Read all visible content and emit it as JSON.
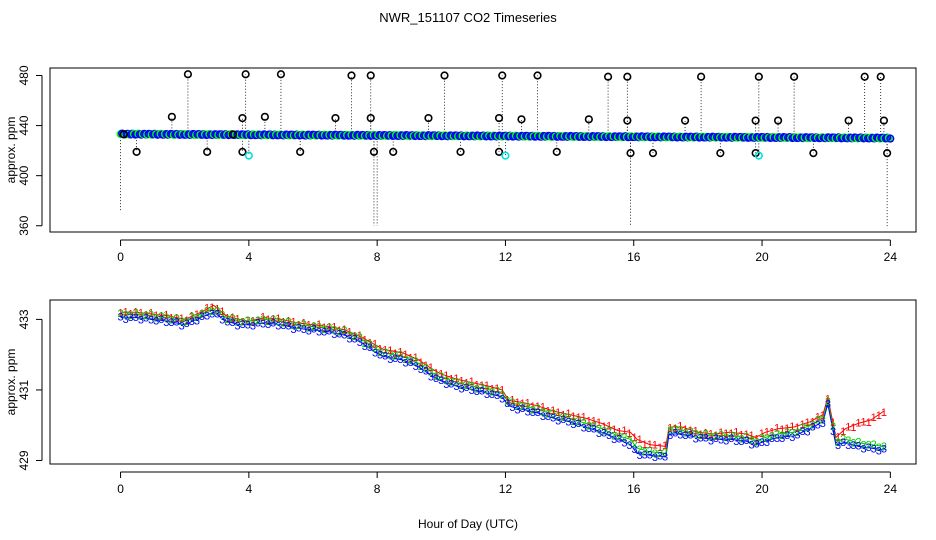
{
  "title": "NWR_151107  CO2 Timeseries",
  "xlabel_shared": "Hour of Day (UTC)",
  "colors": {
    "outlier": "#000000",
    "fill_1": "#0000ff",
    "fill_2": "#00ff00",
    "flag_cyan": "#00e0e0",
    "trace_red": "#ff0000",
    "trace_green": "#00cc00",
    "trace_blue": "#0000ff",
    "axis": "#000000"
  },
  "chart_data": [
    {
      "type": "scatter",
      "panel": "top",
      "ylabel": "approx. ppm",
      "xlim": [
        -2.2,
        24.8
      ],
      "ylim": [
        355,
        486
      ],
      "xticks": [
        0,
        4,
        8,
        12,
        16,
        20,
        24
      ],
      "yticks": [
        360,
        400,
        440,
        480
      ],
      "baseline": {
        "start": [
          0,
          433.2
        ],
        "end": [
          24,
          430.0
        ]
      },
      "outliers_high": [
        [
          0.1,
          433
        ],
        [
          1.6,
          447
        ],
        [
          2.1,
          481
        ],
        [
          3.5,
          433
        ],
        [
          3.8,
          446
        ],
        [
          3.9,
          481
        ],
        [
          4.5,
          447
        ],
        [
          5.0,
          481
        ],
        [
          6.7,
          446
        ],
        [
          7.2,
          480
        ],
        [
          7.8,
          480
        ],
        [
          7.8,
          446
        ],
        [
          9.6,
          446
        ],
        [
          10.1,
          480
        ],
        [
          11.8,
          446
        ],
        [
          11.9,
          480
        ],
        [
          12.5,
          445
        ],
        [
          13.0,
          480
        ],
        [
          14.6,
          445
        ],
        [
          15.2,
          479
        ],
        [
          15.8,
          479
        ],
        [
          15.8,
          444
        ],
        [
          17.6,
          444
        ],
        [
          18.1,
          479
        ],
        [
          19.8,
          444
        ],
        [
          19.9,
          479
        ],
        [
          20.5,
          444
        ],
        [
          21.0,
          479
        ],
        [
          22.7,
          444
        ],
        [
          23.2,
          479
        ],
        [
          23.7,
          479
        ],
        [
          23.8,
          444
        ]
      ],
      "outliers_low": [
        [
          0.5,
          419
        ],
        [
          2.7,
          419
        ],
        [
          3.8,
          419
        ],
        [
          5.6,
          419
        ],
        [
          7.9,
          419
        ],
        [
          8.5,
          419
        ],
        [
          10.6,
          419
        ],
        [
          11.8,
          419
        ],
        [
          13.6,
          419
        ],
        [
          15.9,
          418
        ],
        [
          16.6,
          418
        ],
        [
          18.7,
          418
        ],
        [
          19.8,
          418
        ],
        [
          21.6,
          418
        ],
        [
          23.9,
          418
        ]
      ],
      "cyan_flags": [
        [
          4.0,
          416
        ],
        [
          12.0,
          416
        ],
        [
          19.9,
          416
        ]
      ],
      "spikes_down": [
        [
          0.0,
          372
        ],
        [
          7.9,
          360
        ],
        [
          8.0,
          360
        ],
        [
          15.9,
          360
        ],
        [
          23.9,
          358
        ]
      ]
    },
    {
      "type": "line",
      "panel": "bottom",
      "ylabel": "approx. ppm",
      "xlim": [
        -2.2,
        24.8
      ],
      "ylim": [
        428.9,
        433.55
      ],
      "xticks": [
        0,
        4,
        8,
        12,
        16,
        20,
        24
      ],
      "yticks": [
        429,
        431,
        433
      ],
      "series": [
        {
          "name": "1",
          "marker": "1",
          "x": [
            0,
            0.5,
            1,
            1.5,
            2,
            2.5,
            2.9,
            3.3,
            3.7,
            4,
            4.5,
            5,
            5.5,
            6,
            6.5,
            7,
            7.5,
            7.9,
            8.2,
            8.8,
            9.3,
            9.7,
            10,
            10.5,
            11,
            11.5,
            11.9,
            12.1,
            12.5,
            13,
            13.5,
            14,
            14.5,
            15,
            15.5,
            15.9,
            16.1,
            16.5,
            17,
            17.1,
            17.5,
            18,
            18.5,
            19,
            19.5,
            19.8,
            20.1,
            20.5,
            21,
            21.5,
            21.9,
            22.05,
            22.3,
            22.6,
            23,
            23.4,
            23.8
          ],
          "y": [
            433.2,
            433.2,
            433.15,
            433.1,
            433,
            433.2,
            433.4,
            433.1,
            433,
            432.95,
            433.05,
            433,
            432.9,
            432.85,
            432.8,
            432.7,
            432.5,
            432.3,
            432.15,
            432.05,
            431.85,
            431.6,
            431.45,
            431.3,
            431.2,
            431.1,
            431.0,
            430.7,
            430.65,
            430.55,
            430.4,
            430.3,
            430.2,
            430.05,
            429.85,
            429.8,
            429.6,
            429.45,
            429.4,
            429.95,
            429.95,
            429.8,
            429.75,
            429.8,
            429.75,
            429.65,
            429.8,
            429.9,
            429.95,
            430.1,
            430.3,
            430.8,
            429.65,
            429.9,
            430.05,
            430.15,
            430.4
          ]
        },
        {
          "name": "2",
          "marker": "2",
          "x": [
            0,
            0.5,
            1,
            1.5,
            2,
            2.5,
            2.9,
            3.3,
            3.7,
            4,
            4.5,
            5,
            5.5,
            6,
            6.5,
            7,
            7.5,
            7.9,
            8.2,
            8.8,
            9.3,
            9.7,
            10,
            10.5,
            11,
            11.5,
            11.9,
            12.1,
            12.5,
            13,
            13.5,
            14,
            14.5,
            15,
            15.5,
            15.9,
            16.1,
            16.5,
            17,
            17.1,
            17.5,
            18,
            18.5,
            19,
            19.5,
            19.8,
            20.1,
            20.5,
            21,
            21.5,
            21.9,
            22.05,
            22.3,
            22.6,
            23,
            23.4,
            23.8
          ],
          "y": [
            433.15,
            433.15,
            433.1,
            433.05,
            432.95,
            433.15,
            433.3,
            433.05,
            432.95,
            432.95,
            433.0,
            432.95,
            432.85,
            432.8,
            432.75,
            432.65,
            432.45,
            432.2,
            432.05,
            431.95,
            431.75,
            431.5,
            431.35,
            431.2,
            431.1,
            431.0,
            430.9,
            430.65,
            430.55,
            430.45,
            430.3,
            430.2,
            430.05,
            429.9,
            429.7,
            429.6,
            429.35,
            429.25,
            429.2,
            429.9,
            429.85,
            429.75,
            429.7,
            429.7,
            429.65,
            429.55,
            429.65,
            429.75,
            429.8,
            430.0,
            430.2,
            430.7,
            429.55,
            429.6,
            429.5,
            429.45,
            429.4
          ]
        },
        {
          "name": "3",
          "marker": "3",
          "x": [
            0,
            0.5,
            1,
            1.5,
            2,
            2.5,
            2.9,
            3.3,
            3.7,
            4,
            4.5,
            5,
            5.5,
            6,
            6.5,
            7,
            7.5,
            7.9,
            8.2,
            8.8,
            9.3,
            9.7,
            10,
            10.5,
            11,
            11.5,
            11.9,
            12.1,
            12.5,
            13,
            13.5,
            14,
            14.5,
            15,
            15.5,
            15.9,
            16.1,
            16.5,
            17,
            17.1,
            17.5,
            18,
            18.5,
            19,
            19.5,
            19.8,
            20.1,
            20.5,
            21,
            21.5,
            21.9,
            22.05,
            22.3,
            22.6,
            23,
            23.4,
            23.8
          ],
          "y": [
            433.05,
            433.05,
            433.0,
            432.95,
            432.85,
            433.05,
            433.2,
            432.95,
            432.85,
            432.85,
            432.9,
            432.85,
            432.75,
            432.7,
            432.65,
            432.55,
            432.35,
            432.1,
            431.95,
            431.85,
            431.65,
            431.4,
            431.25,
            431.1,
            431.0,
            430.9,
            430.8,
            430.55,
            430.45,
            430.35,
            430.2,
            430.1,
            429.95,
            429.8,
            429.6,
            429.45,
            429.2,
            429.15,
            429.1,
            429.75,
            429.75,
            429.65,
            429.6,
            429.6,
            429.55,
            429.45,
            429.55,
            429.65,
            429.7,
            429.9,
            430.1,
            430.6,
            429.45,
            429.5,
            429.4,
            429.35,
            429.3
          ]
        }
      ]
    }
  ]
}
